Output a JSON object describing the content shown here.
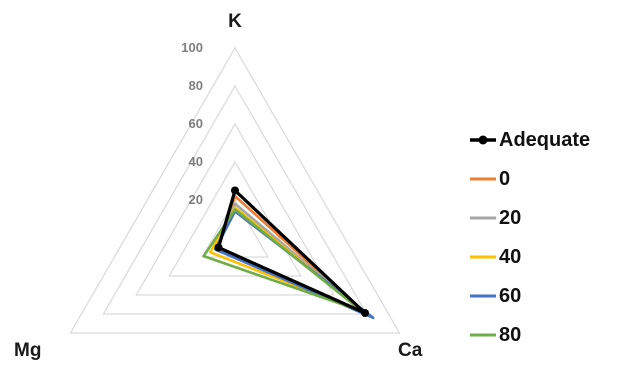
{
  "chart_data": {
    "type": "radar",
    "axes": [
      "K",
      "Ca",
      "Mg"
    ],
    "rlim": [
      0,
      100
    ],
    "ticks": [
      "100",
      "80",
      "60",
      "40",
      "20"
    ],
    "tick_values": [
      100,
      80,
      60,
      40,
      20
    ],
    "grid": true,
    "legend_position": "right",
    "series": [
      {
        "name": "Adequate",
        "values": [
          25,
          79,
          10
        ],
        "color": "#000000",
        "marker": "circle"
      },
      {
        "name": "0",
        "values": [
          22,
          79,
          10
        ],
        "color": "#ed7d31"
      },
      {
        "name": "20",
        "values": [
          18,
          79,
          12
        ],
        "color": "#a5a5a5"
      },
      {
        "name": "40",
        "values": [
          16,
          78,
          15
        ],
        "color": "#ffc000"
      },
      {
        "name": "60",
        "values": [
          14,
          84,
          12
        ],
        "color": "#4472c4"
      },
      {
        "name": "80",
        "values": [
          15,
          77,
          19
        ],
        "color": "#70ad47"
      }
    ]
  }
}
